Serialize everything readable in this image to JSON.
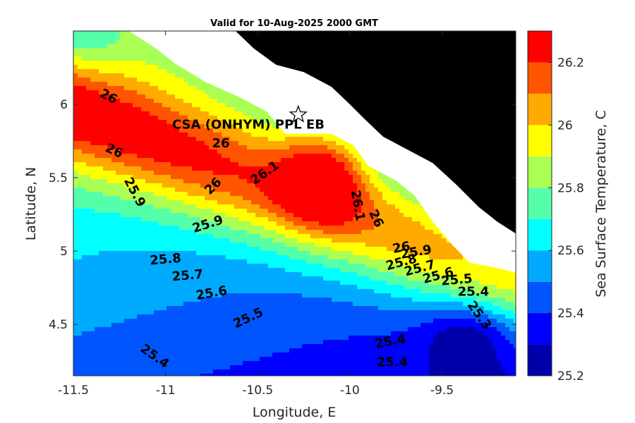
{
  "chart_data": {
    "type": "contour",
    "title": "Valid for 10-Aug-2025 2000 GMT",
    "xlabel": "Longitude, E",
    "ylabel": "Latitude, N",
    "colorbar_label": "Sea Surface Temperature, C",
    "xlim": [
      -11.5,
      -9.1
    ],
    "ylim": [
      4.15,
      6.5
    ],
    "x_ticks": [
      -11.5,
      -11,
      -10.5,
      -10,
      -9.5
    ],
    "x_tick_labels": [
      "-11.5",
      "-11",
      "-10.5",
      "-10",
      "-9.5"
    ],
    "y_ticks": [
      4.5,
      5,
      5.5,
      6
    ],
    "y_tick_labels": [
      "4.5",
      "5",
      "5.5",
      "6"
    ],
    "colorbar_range": [
      25.2,
      26.3
    ],
    "colorbar_ticks": [
      25.2,
      25.4,
      25.6,
      25.8,
      26,
      26.2
    ],
    "colorbar_tick_labels": [
      "25.2",
      "25.4",
      "25.6",
      "25.8",
      "26",
      "26.2"
    ],
    "levels": [
      {
        "min": 25.2,
        "max": 25.3,
        "color": "#0000aa"
      },
      {
        "min": 25.3,
        "max": 25.4,
        "color": "#0000ff"
      },
      {
        "min": 25.4,
        "max": 25.5,
        "color": "#0055ff"
      },
      {
        "min": 25.5,
        "max": 25.6,
        "color": "#00aaff"
      },
      {
        "min": 25.6,
        "max": 25.7,
        "color": "#00ffff"
      },
      {
        "min": 25.7,
        "max": 25.8,
        "color": "#55ffaa"
      },
      {
        "min": 25.8,
        "max": 25.9,
        "color": "#aaff55"
      },
      {
        "min": 25.9,
        "max": 26.0,
        "color": "#ffff00"
      },
      {
        "min": 26.0,
        "max": 26.1,
        "color": "#ffaa00"
      },
      {
        "min": 26.1,
        "max": 26.2,
        "color": "#ff5500"
      },
      {
        "min": 26.2,
        "max": 26.3,
        "color": "#ff0000"
      }
    ],
    "land_color": "#000000",
    "site": {
      "name": "CSA (ONHYM) PPL EB",
      "lon": -10.28,
      "lat": 5.93,
      "marker": "star"
    },
    "contour_labels": [
      {
        "text": "26",
        "lon": -11.31,
        "lat": 6.05,
        "angle": 28
      },
      {
        "text": "26",
        "lon": -11.28,
        "lat": 5.68,
        "angle": 25
      },
      {
        "text": "26",
        "lon": -10.7,
        "lat": 5.73,
        "angle": 0
      },
      {
        "text": "26.1",
        "lon": -10.46,
        "lat": 5.53,
        "angle": -35
      },
      {
        "text": "26",
        "lon": -10.74,
        "lat": 5.44,
        "angle": -45
      },
      {
        "text": "25.9",
        "lon": -11.17,
        "lat": 5.4,
        "angle": 62
      },
      {
        "text": "25.9",
        "lon": -10.77,
        "lat": 5.18,
        "angle": -18
      },
      {
        "text": "26.1",
        "lon": -9.96,
        "lat": 5.31,
        "angle": 80
      },
      {
        "text": "26",
        "lon": -9.86,
        "lat": 5.22,
        "angle": 65
      },
      {
        "text": "26",
        "lon": -9.72,
        "lat": 5.02,
        "angle": -10
      },
      {
        "text": "25.9",
        "lon": -9.64,
        "lat": 4.99,
        "angle": -10
      },
      {
        "text": "25.8",
        "lon": -9.72,
        "lat": 4.92,
        "angle": -15
      },
      {
        "text": "25.8",
        "lon": -11.0,
        "lat": 4.94,
        "angle": -5
      },
      {
        "text": "25.7",
        "lon": -9.62,
        "lat": 4.88,
        "angle": -15
      },
      {
        "text": "25.7",
        "lon": -10.88,
        "lat": 4.83,
        "angle": -5
      },
      {
        "text": "25.6",
        "lon": -9.52,
        "lat": 4.83,
        "angle": -15
      },
      {
        "text": "25.6",
        "lon": -10.75,
        "lat": 4.71,
        "angle": -10
      },
      {
        "text": "25.5",
        "lon": -9.42,
        "lat": 4.8,
        "angle": -5
      },
      {
        "text": "25.5",
        "lon": -10.55,
        "lat": 4.54,
        "angle": -25
      },
      {
        "text": "25.4",
        "lon": -9.33,
        "lat": 4.72,
        "angle": 0
      },
      {
        "text": "25.3",
        "lon": -9.3,
        "lat": 4.56,
        "angle": 55
      },
      {
        "text": "25.4",
        "lon": -9.78,
        "lat": 4.38,
        "angle": -10
      },
      {
        "text": "25.4",
        "lon": -9.77,
        "lat": 4.24,
        "angle": 0
      },
      {
        "text": "25.4",
        "lon": -11.06,
        "lat": 4.28,
        "angle": 35
      }
    ]
  }
}
